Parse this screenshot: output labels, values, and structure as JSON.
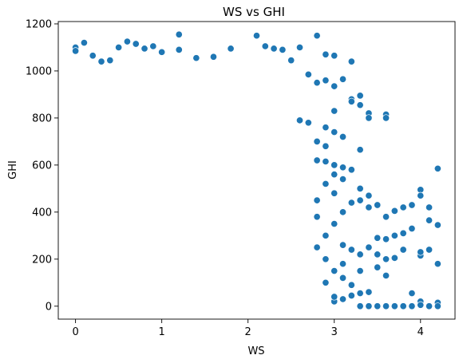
{
  "chart_data": {
    "type": "scatter",
    "title": "WS vs GHI",
    "xlabel": "WS",
    "ylabel": "GHI",
    "xlim": [
      -0.2,
      4.4
    ],
    "ylim": [
      -55,
      1210
    ],
    "xticks": [
      0,
      1,
      2,
      3,
      4
    ],
    "yticks": [
      0,
      200,
      400,
      600,
      800,
      1000,
      1200
    ],
    "grid": false,
    "legend": "none",
    "series": [
      {
        "color": "#1f77b4",
        "points": [
          [
            0.0,
            1100
          ],
          [
            0.0,
            1085
          ],
          [
            0.1,
            1120
          ],
          [
            0.2,
            1065
          ],
          [
            0.3,
            1040
          ],
          [
            0.4,
            1045
          ],
          [
            0.5,
            1100
          ],
          [
            0.6,
            1125
          ],
          [
            0.7,
            1115
          ],
          [
            0.8,
            1095
          ],
          [
            0.9,
            1105
          ],
          [
            1.0,
            1080
          ],
          [
            1.2,
            1155
          ],
          [
            1.2,
            1090
          ],
          [
            1.4,
            1055
          ],
          [
            1.6,
            1060
          ],
          [
            1.8,
            1095
          ],
          [
            2.1,
            1150
          ],
          [
            2.2,
            1105
          ],
          [
            2.3,
            1095
          ],
          [
            2.4,
            1090
          ],
          [
            2.5,
            1045
          ],
          [
            2.6,
            1100
          ],
          [
            2.8,
            1150
          ],
          [
            2.9,
            1070
          ],
          [
            3.0,
            1065
          ],
          [
            3.2,
            1040
          ],
          [
            2.7,
            985
          ],
          [
            2.8,
            950
          ],
          [
            2.9,
            960
          ],
          [
            3.0,
            935
          ],
          [
            3.1,
            965
          ],
          [
            3.2,
            880
          ],
          [
            3.3,
            895
          ],
          [
            3.3,
            855
          ],
          [
            3.4,
            820
          ],
          [
            3.4,
            800
          ],
          [
            3.6,
            815
          ],
          [
            3.6,
            800
          ],
          [
            3.0,
            830
          ],
          [
            3.2,
            870
          ],
          [
            2.6,
            790
          ],
          [
            2.7,
            780
          ],
          [
            2.9,
            760
          ],
          [
            3.0,
            740
          ],
          [
            3.1,
            720
          ],
          [
            2.8,
            700
          ],
          [
            2.9,
            680
          ],
          [
            3.3,
            665
          ],
          [
            2.8,
            620
          ],
          [
            2.9,
            615
          ],
          [
            3.0,
            600
          ],
          [
            3.1,
            590
          ],
          [
            3.2,
            580
          ],
          [
            3.0,
            560
          ],
          [
            3.1,
            540
          ],
          [
            3.3,
            500
          ],
          [
            3.4,
            470
          ],
          [
            3.2,
            440
          ],
          [
            3.3,
            450
          ],
          [
            3.4,
            420
          ],
          [
            3.5,
            430
          ],
          [
            3.6,
            380
          ],
          [
            3.7,
            405
          ],
          [
            3.8,
            420
          ],
          [
            3.9,
            430
          ],
          [
            4.0,
            495
          ],
          [
            4.0,
            470
          ],
          [
            4.1,
            420
          ],
          [
            4.2,
            585
          ],
          [
            4.1,
            365
          ],
          [
            4.2,
            345
          ],
          [
            3.9,
            330
          ],
          [
            3.8,
            310
          ],
          [
            3.7,
            300
          ],
          [
            3.6,
            285
          ],
          [
            3.5,
            290
          ],
          [
            3.4,
            250
          ],
          [
            3.5,
            220
          ],
          [
            3.6,
            200
          ],
          [
            3.7,
            205
          ],
          [
            3.8,
            240
          ],
          [
            4.0,
            215
          ],
          [
            4.0,
            230
          ],
          [
            4.1,
            240
          ],
          [
            4.2,
            180
          ],
          [
            3.3,
            220
          ],
          [
            3.2,
            240
          ],
          [
            3.1,
            260
          ],
          [
            3.3,
            150
          ],
          [
            3.5,
            165
          ],
          [
            3.6,
            130
          ],
          [
            3.9,
            55
          ],
          [
            4.0,
            20
          ],
          [
            4.0,
            5
          ],
          [
            4.1,
            0
          ],
          [
            4.2,
            15
          ],
          [
            4.2,
            0
          ],
          [
            3.9,
            0
          ],
          [
            3.8,
            0
          ],
          [
            3.7,
            0
          ],
          [
            3.6,
            0
          ],
          [
            3.5,
            0
          ],
          [
            3.4,
            0
          ],
          [
            3.3,
            0
          ],
          [
            3.4,
            60
          ],
          [
            3.3,
            55
          ],
          [
            3.2,
            45
          ],
          [
            3.1,
            30
          ],
          [
            3.0,
            20
          ],
          [
            3.0,
            40
          ],
          [
            3.1,
            120
          ],
          [
            3.2,
            90
          ],
          [
            3.1,
            180
          ],
          [
            3.0,
            150
          ],
          [
            2.9,
            100
          ],
          [
            2.9,
            200
          ],
          [
            2.8,
            250
          ],
          [
            2.9,
            300
          ],
          [
            3.0,
            350
          ],
          [
            3.1,
            400
          ],
          [
            3.0,
            480
          ],
          [
            2.9,
            520
          ],
          [
            2.8,
            450
          ],
          [
            2.8,
            380
          ]
        ]
      }
    ]
  }
}
